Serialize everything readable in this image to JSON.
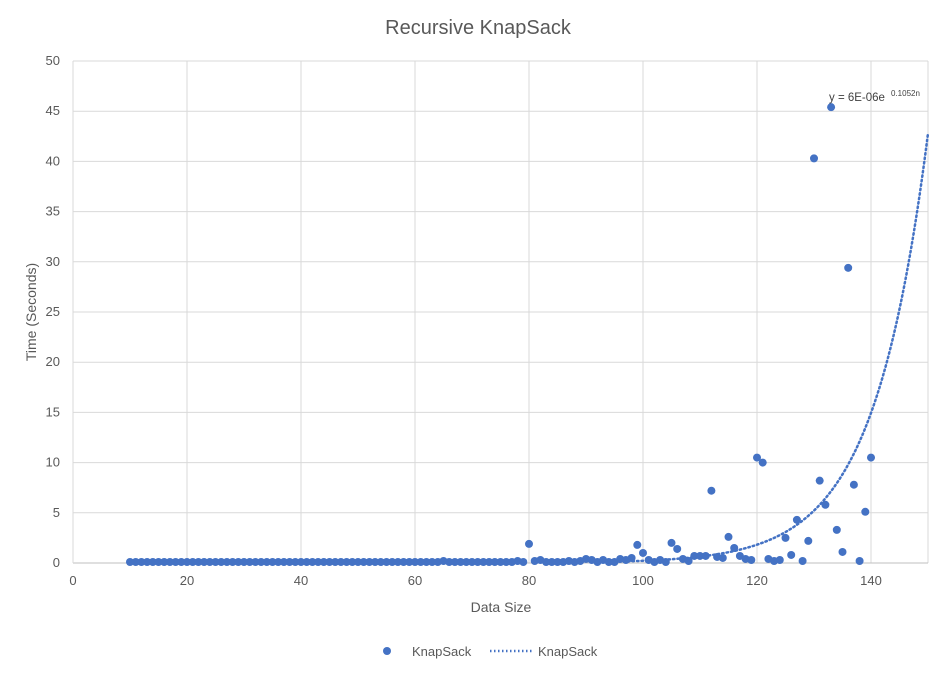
{
  "chart_data": {
    "type": "scatter",
    "title": "Recursive KnapSack",
    "xlabel": "Data Size",
    "ylabel": "Time (Seconds)",
    "xlim": [
      0,
      150
    ],
    "ylim": [
      0,
      50
    ],
    "x_ticks": [
      "0",
      "20",
      "40",
      "60",
      "80",
      "100",
      "120",
      "140"
    ],
    "y_ticks": [
      "0",
      "5",
      "10",
      "15",
      "20",
      "25",
      "30",
      "35",
      "40",
      "45",
      "50"
    ],
    "grid": true,
    "legend_position": "bottom",
    "marker_color": "#4472C4",
    "series": [
      {
        "name": "KnapSack",
        "kind": "scatter",
        "x": [
          10,
          11,
          12,
          13,
          14,
          15,
          16,
          17,
          18,
          19,
          20,
          21,
          22,
          23,
          24,
          25,
          26,
          27,
          28,
          29,
          30,
          31,
          32,
          33,
          34,
          35,
          36,
          37,
          38,
          39,
          40,
          41,
          42,
          43,
          44,
          45,
          46,
          47,
          48,
          49,
          50,
          51,
          52,
          53,
          54,
          55,
          56,
          57,
          58,
          59,
          60,
          61,
          62,
          63,
          64,
          65,
          66,
          67,
          68,
          69,
          70,
          71,
          72,
          73,
          74,
          75,
          76,
          77,
          78,
          79,
          80,
          81,
          82,
          83,
          84,
          85,
          86,
          87,
          88,
          89,
          90,
          91,
          92,
          93,
          94,
          95,
          96,
          97,
          98,
          99,
          100,
          101,
          102,
          103,
          104,
          105,
          106,
          107,
          108,
          109,
          110,
          111,
          112,
          113,
          114,
          115,
          116,
          117,
          118,
          119,
          120,
          121,
          122,
          123,
          124,
          125,
          126,
          127,
          128,
          129,
          130,
          131,
          132,
          133,
          134,
          135,
          136,
          137,
          138,
          139,
          140
        ],
        "y": [
          0.1,
          0.1,
          0.1,
          0.1,
          0.1,
          0.1,
          0.1,
          0.1,
          0.1,
          0.1,
          0.1,
          0.1,
          0.1,
          0.1,
          0.1,
          0.1,
          0.1,
          0.1,
          0.1,
          0.1,
          0.1,
          0.1,
          0.1,
          0.1,
          0.1,
          0.1,
          0.1,
          0.1,
          0.1,
          0.1,
          0.1,
          0.1,
          0.1,
          0.1,
          0.1,
          0.1,
          0.1,
          0.1,
          0.1,
          0.1,
          0.1,
          0.1,
          0.1,
          0.1,
          0.1,
          0.1,
          0.1,
          0.1,
          0.1,
          0.1,
          0.1,
          0.1,
          0.1,
          0.1,
          0.1,
          0.2,
          0.1,
          0.1,
          0.1,
          0.1,
          0.1,
          0.1,
          0.1,
          0.1,
          0.1,
          0.1,
          0.1,
          0.1,
          0.2,
          0.1,
          1.9,
          0.2,
          0.3,
          0.1,
          0.1,
          0.1,
          0.1,
          0.2,
          0.1,
          0.2,
          0.4,
          0.3,
          0.1,
          0.3,
          0.1,
          0.1,
          0.4,
          0.3,
          0.5,
          1.8,
          1.0,
          0.3,
          0.1,
          0.3,
          0.1,
          2.0,
          1.4,
          0.4,
          0.2,
          0.7,
          0.7,
          0.7,
          7.2,
          0.6,
          0.5,
          2.6,
          1.5,
          0.7,
          0.4,
          0.3,
          10.5,
          10.0,
          0.4,
          0.2,
          0.3,
          2.5,
          0.8,
          4.3,
          0.2,
          2.2,
          40.3,
          8.2,
          5.8,
          45.4,
          3.3,
          1.1,
          29.4,
          7.8,
          0.2,
          5.1,
          10.5
        ]
      },
      {
        "name": "KnapSack",
        "kind": "trendline",
        "equation": "y = 6E-06e",
        "equation_exponent": "0.1052n",
        "a": 6e-06,
        "b": 0.1052
      }
    ]
  }
}
